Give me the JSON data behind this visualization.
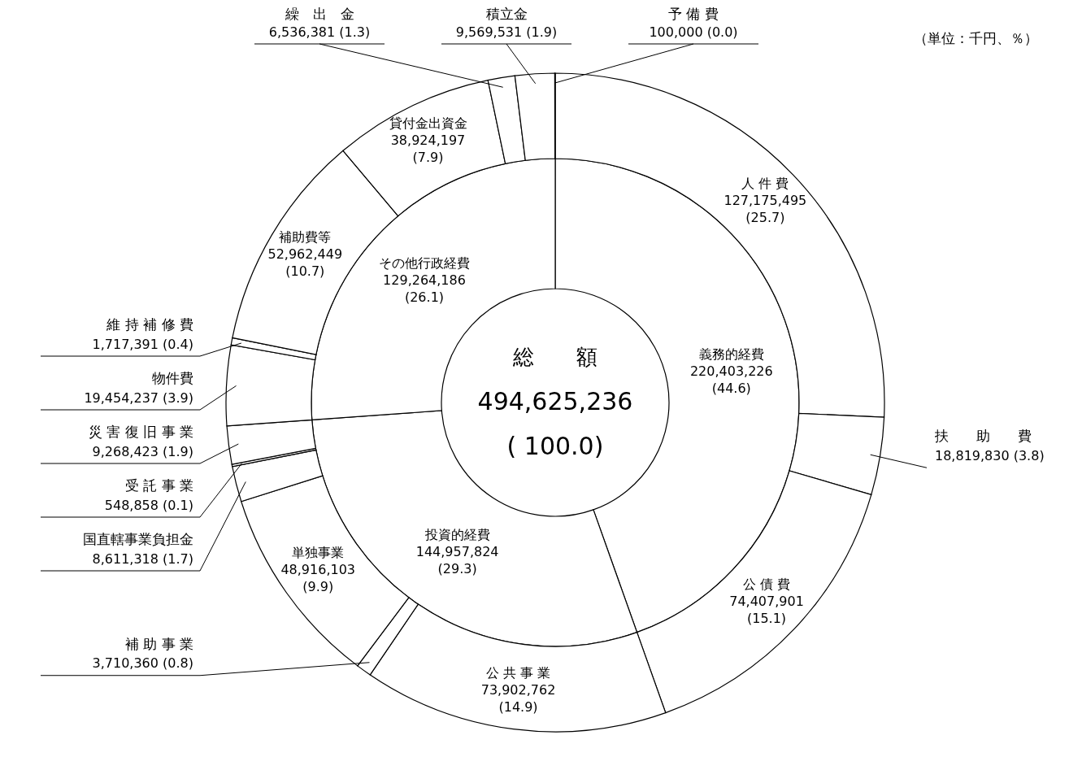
{
  "chart_data": [
    {
      "type": "donut",
      "categories": [
        "義務的経費",
        "投資的経費",
        "その他行政経費"
      ],
      "values": [
        220403226,
        144957824,
        129264186
      ],
      "colors": [
        "#ffffff",
        "#ffffff",
        "#ffffff"
      ],
      "value_labels": [
        "220,403,226 (44.6)",
        "144,957,824 (29.3)",
        "129,264,186 (26.1)"
      ],
      "annotations": [
        "総　　額",
        "494,625,236",
        "( 100.0)"
      ]
    },
    {
      "type": "donut",
      "categories": [
        "人 件 費",
        "扶　　助　　費",
        "公 債 費",
        "公 共 事 業",
        "補 助 事 業",
        "単独事業",
        "国直轄事業負担金",
        "受 託 事 業",
        "災 害 復 旧 事 業",
        "物件費",
        "維 持 補 修 費",
        "補助費等",
        "貸付金出資金",
        "繰　出　金",
        "積立金",
        "予 備 費"
      ],
      "values": [
        127175495,
        18819830,
        74407901,
        73902762,
        3710360,
        48916103,
        8611318,
        548858,
        9268423,
        19454237,
        1717391,
        52962449,
        38924197,
        6536381,
        9569531,
        100000
      ],
      "colors": [
        "#ffffff",
        "#ffffff",
        "#ffffff",
        "#ffffff",
        "#ffffff",
        "#ffffff",
        "#ffffff",
        "#ffffff",
        "#ffffff",
        "#ffffff",
        "#ffffff",
        "#ffffff",
        "#ffffff",
        "#ffffff",
        "#ffffff",
        "#ffffff"
      ],
      "value_labels": [
        "127,175,495 (25.7)",
        "18,819,830 (3.8)",
        "74,407,901 (15.1)",
        "73,902,762 (14.9)",
        "3,710,360 (0.8)",
        "48,916,103 (9.9)",
        "8,611,318 (1.7)",
        "548,858 (0.1)",
        "9,268,423 (1.9)",
        "19,454,237 (3.9)",
        "1,717,391 (0.4)",
        "52,962,449 (10.7)",
        "38,924,197 (7.9)",
        "6,536,381 (1.3)",
        "9,569,531 (1.9)",
        "100,000 (0.0)"
      ],
      "annotations": [
        "（単位：千円、％）"
      ]
    }
  ]
}
